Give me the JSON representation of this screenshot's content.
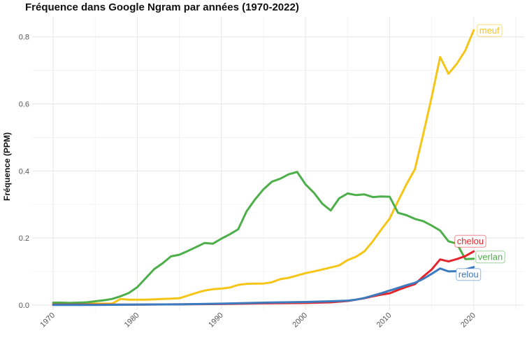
{
  "chart_data": {
    "type": "line",
    "title": "Fréquence dans Google Ngram par années (1970-2022)",
    "xlabel": "",
    "ylabel": "Fréquence (PPM)",
    "xlim": [
      1967.5,
      2026
    ],
    "ylim": [
      -0.015,
      0.86
    ],
    "x_ticks": [
      "1970",
      "1980",
      "1990",
      "2000",
      "2010",
      "2020"
    ],
    "y_ticks": [
      "0.0",
      "0.2",
      "0.4",
      "0.6",
      "0.8"
    ],
    "grid": true,
    "legend": "direct labels at line ends",
    "series": [
      {
        "name": "meuf",
        "color": "#F5C518",
        "x": [
          1970,
          1971,
          1972,
          1973,
          1974,
          1975,
          1976,
          1977,
          1978,
          1979,
          1980,
          1981,
          1982,
          1983,
          1984,
          1985,
          1986,
          1987,
          1988,
          1989,
          1990,
          1991,
          1992,
          1993,
          1994,
          1995,
          1996,
          1997,
          1998,
          1999,
          2000,
          2001,
          2002,
          2003,
          2004,
          2005,
          2006,
          2007,
          2008,
          2009,
          2010,
          2011,
          2012,
          2013,
          2014,
          2015,
          2016,
          2017,
          2018,
          2019,
          2020
        ],
        "values": [
          0.003,
          0.003,
          0.003,
          0.004,
          0.004,
          0.004,
          0.004,
          0.004,
          0.018,
          0.016,
          0.016,
          0.016,
          0.017,
          0.018,
          0.019,
          0.02,
          0.028,
          0.036,
          0.043,
          0.047,
          0.049,
          0.052,
          0.06,
          0.063,
          0.064,
          0.064,
          0.068,
          0.077,
          0.081,
          0.088,
          0.095,
          0.1,
          0.106,
          0.112,
          0.118,
          0.134,
          0.144,
          0.16,
          0.19,
          0.225,
          0.258,
          0.31,
          0.36,
          0.405,
          0.51,
          0.62,
          0.74,
          0.69,
          0.72,
          0.76,
          0.82
        ]
      },
      {
        "name": "verlan",
        "color": "#4DAF4A",
        "x": [
          1970,
          1971,
          1972,
          1973,
          1974,
          1975,
          1976,
          1977,
          1978,
          1979,
          1980,
          1981,
          1982,
          1983,
          1984,
          1985,
          1986,
          1987,
          1988,
          1989,
          1990,
          1991,
          1992,
          1993,
          1994,
          1995,
          1996,
          1997,
          1998,
          1999,
          2000,
          2001,
          2002,
          2003,
          2004,
          2005,
          2006,
          2007,
          2008,
          2009,
          2010,
          2011,
          2012,
          2013,
          2014,
          2015,
          2016,
          2017,
          2018,
          2019,
          2020
        ],
        "values": [
          0.007,
          0.007,
          0.006,
          0.007,
          0.008,
          0.011,
          0.014,
          0.018,
          0.026,
          0.036,
          0.053,
          0.08,
          0.107,
          0.124,
          0.145,
          0.15,
          0.161,
          0.173,
          0.185,
          0.183,
          0.198,
          0.211,
          0.226,
          0.28,
          0.315,
          0.345,
          0.368,
          0.377,
          0.39,
          0.397,
          0.36,
          0.335,
          0.302,
          0.282,
          0.318,
          0.333,
          0.328,
          0.33,
          0.322,
          0.324,
          0.323,
          0.275,
          0.268,
          0.257,
          0.25,
          0.237,
          0.222,
          0.19,
          0.183,
          0.137,
          0.138
        ]
      },
      {
        "name": "chelou",
        "color": "#E3262B",
        "x": [
          1970,
          1975,
          1980,
          1985,
          1990,
          1995,
          2000,
          2003,
          2005,
          2006,
          2007,
          2008,
          2009,
          2010,
          2011,
          2012,
          2013,
          2014,
          2015,
          2016,
          2017,
          2018,
          2019,
          2020
        ],
        "values": [
          0.001,
          0.001,
          0.001,
          0.002,
          0.003,
          0.005,
          0.006,
          0.008,
          0.012,
          0.016,
          0.02,
          0.026,
          0.031,
          0.035,
          0.045,
          0.054,
          0.062,
          0.085,
          0.106,
          0.136,
          0.13,
          0.137,
          0.146,
          0.16
        ]
      },
      {
        "name": "relou",
        "color": "#3B7BBF",
        "x": [
          1970,
          1975,
          1980,
          1985,
          1990,
          1995,
          2000,
          2003,
          2005,
          2006,
          2007,
          2008,
          2009,
          2010,
          2011,
          2012,
          2013,
          2014,
          2015,
          2016,
          2017,
          2018,
          2019,
          2020
        ],
        "values": [
          0.0,
          0.0,
          0.001,
          0.002,
          0.004,
          0.007,
          0.009,
          0.011,
          0.013,
          0.016,
          0.021,
          0.028,
          0.035,
          0.043,
          0.051,
          0.059,
          0.066,
          0.078,
          0.093,
          0.109,
          0.1,
          0.101,
          0.106,
          0.113
        ]
      }
    ]
  }
}
